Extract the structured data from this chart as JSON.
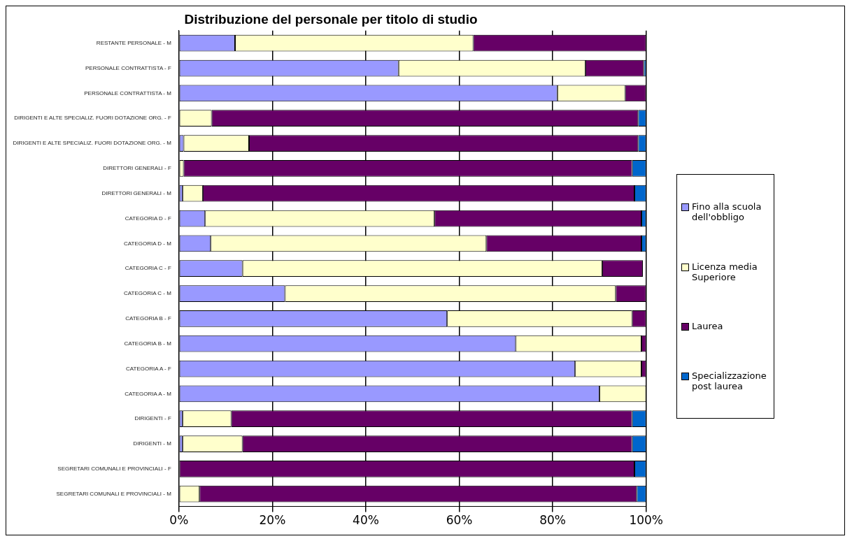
{
  "chart_data": {
    "type": "bar",
    "orientation": "horizontal",
    "stacked": true,
    "title": "Distribuzione del personale per titolo di studio",
    "categories": [
      "RESTANTE PERSONALE - M",
      "PERSONALE CONTRATTISTA - F",
      "PERSONALE CONTRATTISTA - M",
      "DIRIGENTI E ALTE SPECIALIZ. FUORI DOTAZIONE ORG. - F",
      "DIRIGENTI E ALTE SPECIALIZ. FUORI DOTAZIONE ORG. - M",
      "DIRETTORI GENERALI - F",
      "DIRETTORI GENERALI - M",
      "CATEGORIA D - F",
      "CATEGORIA D - M",
      "CATEGORIA C - F",
      "CATEGORIA C - M",
      "CATEGORIA B - F",
      "CATEGORIA B - M",
      "CATEGORIA A - F",
      "CATEGORIA A - M",
      "DIRIGENTI - F",
      "DIRIGENTI - M",
      "SEGRETARI COMUNALI E PROVINCIALI - F",
      "SEGRETARI COMUNALI E PROVINCIALI - M"
    ],
    "series": [
      {
        "name": "Fino alla scuola dell'obbligo",
        "color": "#9999ff",
        "values": [
          12,
          47,
          81,
          0,
          1,
          0,
          0.8,
          5.6,
          6.8,
          13.6,
          22.7,
          57.4,
          72.1,
          84.8,
          90,
          0.8,
          0.8,
          0,
          0
        ]
      },
      {
        "name": "Licenza media Superiore",
        "color": "#ffffcc",
        "values": [
          51,
          40,
          14.5,
          7,
          14,
          1,
          4.3,
          49.1,
          59,
          77,
          70.8,
          39.6,
          26.9,
          14.2,
          10,
          10.4,
          12.8,
          0,
          4.4
        ]
      },
      {
        "name": "Laurea",
        "color": "#660066",
        "values": [
          37,
          12.5,
          4.5,
          91.3,
          83.3,
          96,
          92.4,
          44.3,
          33.2,
          8.7,
          6.5,
          3,
          1,
          1,
          0,
          85.8,
          83.4,
          97.5,
          93.6
        ]
      },
      {
        "name": "Specializzazione post laurea",
        "color": "#0066cc",
        "values": [
          0,
          0.5,
          0,
          1.7,
          1.7,
          3,
          2.5,
          1,
          1,
          0,
          0,
          0,
          0,
          0,
          0,
          3,
          3,
          2.5,
          2
        ]
      }
    ],
    "xlim": [
      0,
      100
    ],
    "xticks": [
      {
        "value": 0,
        "label": "0%"
      },
      {
        "value": 20,
        "label": "20%"
      },
      {
        "value": 40,
        "label": "40%"
      },
      {
        "value": 60,
        "label": "60%"
      },
      {
        "value": 80,
        "label": "80%"
      },
      {
        "value": 100,
        "label": "100%"
      }
    ],
    "grid": "x",
    "legend": "right"
  }
}
